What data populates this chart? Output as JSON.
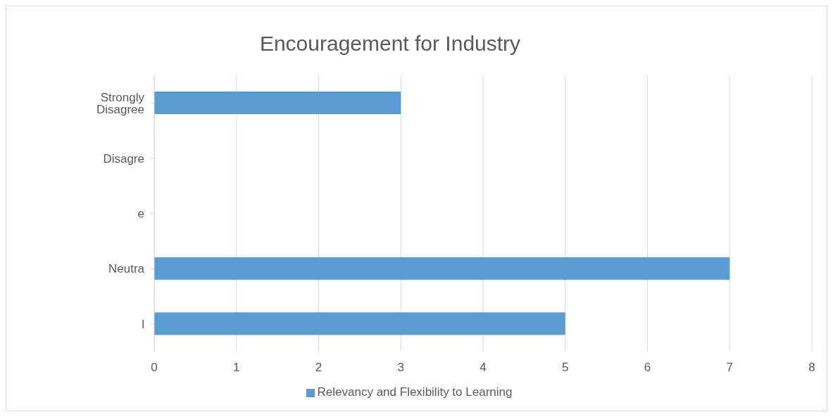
{
  "chart_data": {
    "type": "bar",
    "orientation": "horizontal",
    "title": "Encouragement for Industry",
    "categories": [
      "Strongly Disagree",
      "Disagre",
      "e",
      "Neutra",
      "l"
    ],
    "series": [
      {
        "name": "Relevancy and Flexibility to Learning",
        "color": "#5b9bd5",
        "values": [
          3,
          0,
          0,
          7,
          5
        ]
      }
    ],
    "xlim": [
      0,
      8
    ],
    "xticks": [
      0,
      1,
      2,
      3,
      4,
      5,
      6,
      7,
      8
    ],
    "grid": "x",
    "legend": "bottom"
  }
}
